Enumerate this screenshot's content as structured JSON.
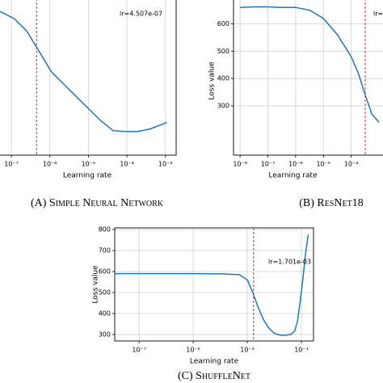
{
  "chart_data": [
    {
      "type": "line",
      "xscale": "log",
      "grid": true,
      "color": "#1f77b4",
      "vline_color": "#d62728",
      "x_label": "Learning rate",
      "caption": "(A) Simple Neural Network",
      "annotation": "lr=4.507e-07",
      "vline": 4.507e-07,
      "x": [
        4.6e-08,
        1.2e-07,
        2.5e-07,
        5.3e-07,
        1.1e-06,
        2.3e-06,
        4.8e-06,
        1e-05,
        2.1e-05,
        4.4e-05,
        9.1e-05,
        0.00019,
        0.0004,
        0.0011
      ],
      "values": [
        0.922,
        0.87,
        0.792,
        0.661,
        0.531,
        0.453,
        0.375,
        0.297,
        0.219,
        0.156,
        0.151,
        0.151,
        0.167,
        0.208
      ],
      "xlim": [
        4.6e-08,
        0.0019
      ],
      "ylim": [
        0,
        1
      ],
      "xticks": [
        {
          "value": 1e-07,
          "label": "10⁻⁷"
        },
        {
          "value": 1e-06,
          "label": "10⁻⁶"
        },
        {
          "value": 1e-05,
          "label": "10⁻⁵"
        },
        {
          "value": 0.0001,
          "label": "10⁻⁴"
        },
        {
          "value": 0.001,
          "label": "10⁻³"
        }
      ]
    },
    {
      "type": "line",
      "xscale": "log",
      "grid": true,
      "color": "#1f77b4",
      "vline_color": "#d62728",
      "x_label": "Learning rate",
      "y_label": "Loss value",
      "caption": "(B) ResNet18",
      "annotation": "lr=",
      "vline": 0.00032,
      "x": [
        1e-08,
        3.2e-08,
        1e-07,
        3.2e-07,
        1e-06,
        3.2e-06,
        1e-05,
        3.2e-05,
        0.0001,
        0.00018,
        0.00032,
        0.00056,
        0.001
      ],
      "values": [
        660,
        662,
        662,
        660,
        660,
        650,
        620,
        560,
        480,
        420,
        340,
        270,
        240
      ],
      "xlim": [
        5.8e-09,
        0.0016
      ],
      "ylim": [
        120,
        693
      ],
      "xticks": [
        {
          "value": 1e-08,
          "label": "10⁻⁸"
        },
        {
          "value": 1e-07,
          "label": "10⁻⁷"
        },
        {
          "value": 1e-06,
          "label": "10⁻⁶"
        },
        {
          "value": 1e-05,
          "label": "10⁻⁵"
        },
        {
          "value": 0.0001,
          "label": "10⁻⁴"
        }
      ],
      "yticks": [
        300,
        400,
        500,
        600
      ]
    },
    {
      "type": "line",
      "xscale": "log",
      "grid": true,
      "color": "#1f77b4",
      "vline_color": "#d62728",
      "x_label": "Learning rate",
      "y_label": "Loss value",
      "caption": "(C) ShuffleNet",
      "annotation": "lr=1.701e-03",
      "vline": 0.001701,
      "x": [
        1.26e-08,
        1e-07,
        1e-06,
        1e-05,
        0.0001,
        0.0005,
        0.001,
        0.0016,
        0.0025,
        0.004,
        0.0063,
        0.01,
        0.016,
        0.025,
        0.04,
        0.056,
        0.071,
        0.089,
        0.112,
        0.141,
        0.178
      ],
      "values": [
        590,
        590,
        590,
        590,
        589,
        585,
        560,
        500,
        430,
        370,
        330,
        305,
        297,
        296,
        300,
        315,
        360,
        450,
        560,
        680,
        775
      ],
      "xlim": [
        1.26e-08,
        0.28
      ],
      "ylim": [
        269,
        808
      ],
      "xticks": [
        {
          "value": 1e-07,
          "label": "10⁻⁷"
        },
        {
          "value": 1e-05,
          "label": "10⁻⁵"
        },
        {
          "value": 0.001,
          "label": "10⁻³"
        },
        {
          "value": 0.1,
          "label": "10⁻¹"
        }
      ],
      "yticks": [
        300,
        400,
        500,
        600,
        700,
        800
      ]
    }
  ]
}
